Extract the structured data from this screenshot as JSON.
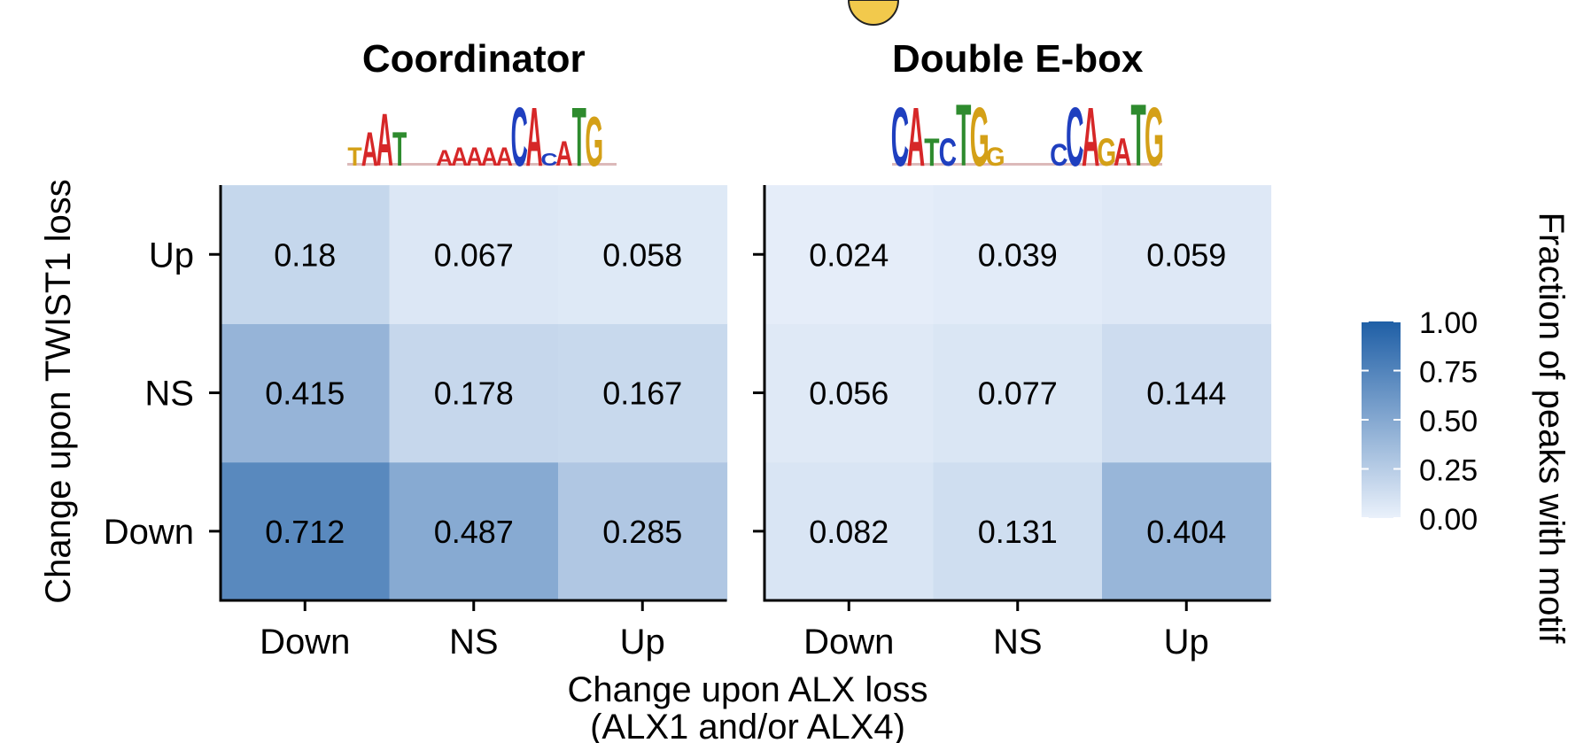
{
  "chart_data": [
    {
      "type": "heatmap",
      "title": "Coordinator",
      "x_categories": [
        "Down",
        "NS",
        "Up"
      ],
      "y_categories": [
        "Down",
        "NS",
        "Up"
      ],
      "values": [
        [
          0.712,
          0.487,
          0.285
        ],
        [
          0.415,
          0.178,
          0.167
        ],
        [
          0.18,
          0.067,
          0.058
        ]
      ],
      "motif_logo": [
        {
          "letter": "T",
          "color": "#d4a017",
          "height": 0.3
        },
        {
          "letter": "A",
          "color": "#d62728",
          "height": 0.55
        },
        {
          "letter": "A",
          "color": "#d62728",
          "height": 0.85
        },
        {
          "letter": "T",
          "color": "#2e8b2e",
          "height": 0.55
        },
        {
          "letter": "",
          "color": "#999999",
          "height": 0.05
        },
        {
          "letter": "",
          "color": "#999999",
          "height": 0.05
        },
        {
          "letter": "A",
          "color": "#d62728",
          "height": 0.25
        },
        {
          "letter": "A",
          "color": "#d62728",
          "height": 0.3
        },
        {
          "letter": "A",
          "color": "#d62728",
          "height": 0.3
        },
        {
          "letter": "A",
          "color": "#d62728",
          "height": 0.3
        },
        {
          "letter": "A",
          "color": "#d62728",
          "height": 0.3
        },
        {
          "letter": "C",
          "color": "#1f3fbf",
          "height": 0.95
        },
        {
          "letter": "A",
          "color": "#d62728",
          "height": 0.95
        },
        {
          "letter": "C",
          "color": "#1f3fbf",
          "height": 0.2
        },
        {
          "letter": "A",
          "color": "#d62728",
          "height": 0.4
        },
        {
          "letter": "T",
          "color": "#2e8b2e",
          "height": 0.95
        },
        {
          "letter": "G",
          "color": "#d4a017",
          "height": 0.8
        },
        {
          "letter": "",
          "color": "#999999",
          "height": 0.08
        }
      ]
    },
    {
      "type": "heatmap",
      "title": "Double E-box",
      "x_categories": [
        "Down",
        "NS",
        "Up"
      ],
      "y_categories": [
        "Down",
        "NS",
        "Up"
      ],
      "values": [
        [
          0.082,
          0.131,
          0.404
        ],
        [
          0.056,
          0.077,
          0.144
        ],
        [
          0.024,
          0.039,
          0.059
        ]
      ],
      "motif_logo": [
        {
          "letter": "C",
          "color": "#1f3fbf",
          "height": 0.95
        },
        {
          "letter": "A",
          "color": "#d62728",
          "height": 0.95
        },
        {
          "letter": "T",
          "color": "#2e8b2e",
          "height": 0.45
        },
        {
          "letter": "C",
          "color": "#1f3fbf",
          "height": 0.45
        },
        {
          "letter": "T",
          "color": "#2e8b2e",
          "height": 1.0
        },
        {
          "letter": "G",
          "color": "#d4a017",
          "height": 0.95
        },
        {
          "letter": "G",
          "color": "#d4a017",
          "height": 0.3
        },
        {
          "letter": "",
          "color": "#999999",
          "height": 0.0
        },
        {
          "letter": "",
          "color": "#999999",
          "height": 0.0
        },
        {
          "letter": "",
          "color": "#999999",
          "height": 0.0
        },
        {
          "letter": "C",
          "color": "#1f3fbf",
          "height": 0.35
        },
        {
          "letter": "C",
          "color": "#1f3fbf",
          "height": 0.95
        },
        {
          "letter": "A",
          "color": "#d62728",
          "height": 0.95
        },
        {
          "letter": "G",
          "color": "#d4a017",
          "height": 0.45
        },
        {
          "letter": "A",
          "color": "#d62728",
          "height": 0.45
        },
        {
          "letter": "T",
          "color": "#2e8b2e",
          "height": 1.0
        },
        {
          "letter": "G",
          "color": "#d4a017",
          "height": 0.95
        }
      ]
    }
  ],
  "axes": {
    "x_label_line1": "Change upon ALX loss",
    "x_label_line2": "(ALX1 and/or ALX4)",
    "y_label": "Change upon TWIST1 loss"
  },
  "legend": {
    "title": "Fraction of peaks with motif",
    "ticks": [
      "1.00",
      "0.75",
      "0.50",
      "0.25",
      "0.00"
    ],
    "tick_values": [
      1.0,
      0.75,
      0.5,
      0.25,
      0.0
    ],
    "range": [
      0,
      1
    ],
    "color_low": "#eaf1fb",
    "color_high": "#1f5fa6"
  },
  "colors": {
    "low": "#eaf1fb",
    "high": "#1f5fa6"
  }
}
